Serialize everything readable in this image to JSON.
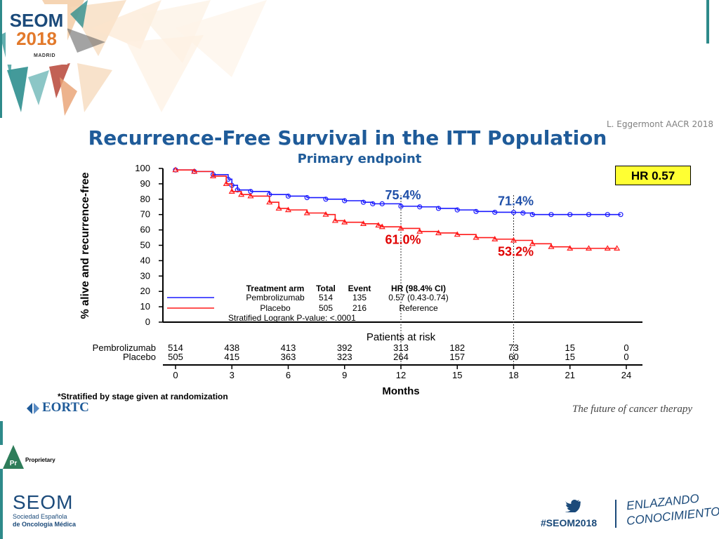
{
  "header": {
    "logo_seom": "SEOM",
    "logo_year": "2018",
    "logo_city": "MADRID",
    "citation": "L. Eggermont AACR 2018",
    "title": "Recurrence-Free Survival in the ITT Population",
    "subtitle": "Primary endpoint"
  },
  "hr_box": "HR  0.57",
  "chart_data": {
    "type": "line",
    "ylabel": "% alive and recurrence-free",
    "xlabel": "Months",
    "xlim": [
      0,
      24
    ],
    "ylim": [
      0,
      100
    ],
    "x_ticks": [
      "0",
      "3",
      "6",
      "9",
      "12",
      "15",
      "18",
      "21",
      "24"
    ],
    "y_ticks": [
      "0",
      "10",
      "20",
      "30",
      "40",
      "50",
      "60",
      "70",
      "80",
      "90",
      "100"
    ],
    "reference_lines_x": [
      12,
      18
    ],
    "series": [
      {
        "name": "Pembrolizumab",
        "color": "#1a1aff",
        "x": [
          0,
          1,
          2,
          2.8,
          3,
          3.3,
          4,
          5,
          6,
          7,
          8,
          9,
          10,
          10.5,
          11,
          12,
          13,
          14,
          15,
          16,
          17,
          18,
          18.5,
          19,
          20,
          21,
          22,
          23,
          23.7
        ],
        "y": [
          99,
          98,
          96,
          93,
          89,
          86,
          85,
          83,
          82,
          81,
          80,
          79,
          78,
          77,
          77,
          75.4,
          75,
          74,
          73,
          72,
          71.5,
          71.4,
          71,
          70,
          70,
          70,
          70,
          70,
          70
        ]
      },
      {
        "name": "Placebo",
        "color": "#ff1a1a",
        "x": [
          0,
          1,
          2,
          2.7,
          3,
          3.5,
          4,
          5,
          5.5,
          6,
          7,
          8,
          8.5,
          9,
          10,
          10.8,
          11,
          12,
          13,
          14,
          15,
          16,
          17,
          18,
          19,
          20,
          21,
          22,
          23,
          23.5
        ],
        "y": [
          99,
          98,
          95,
          90,
          85,
          83,
          82,
          78,
          74,
          73,
          71,
          70,
          66,
          65,
          64,
          63,
          62,
          61,
          59,
          58,
          57,
          55,
          54,
          53.2,
          51,
          49,
          48,
          48,
          48,
          48
        ]
      }
    ],
    "annotations": [
      {
        "text": "75.4%",
        "x": 12,
        "y": 75.4,
        "series": "Pembrolizumab"
      },
      {
        "text": "71.4%",
        "x": 18,
        "y": 71.4,
        "series": "Pembrolizumab"
      },
      {
        "text": "61.0%",
        "x": 12,
        "y": 61,
        "series": "Placebo"
      },
      {
        "text": "53.2%",
        "x": 18,
        "y": 53.2,
        "series": "Placebo"
      }
    ],
    "legend": {
      "headers": [
        "Treatment arm",
        "Total",
        "Event",
        "HR (98.4% CI)"
      ],
      "rows": [
        {
          "arm": "Pembrolizumab",
          "total": "514",
          "event": "135",
          "hr": "0.57 (0.43-0.74)"
        },
        {
          "arm": "Placebo",
          "total": "505",
          "event": "216",
          "hr": "Reference"
        }
      ],
      "note": "Stratified Logrank P-value: <.0001"
    },
    "risk_table": {
      "title": "Patients at risk",
      "rows": [
        {
          "label": "Pembrolizumab",
          "values": [
            "514",
            "438",
            "413",
            "392",
            "313",
            "182",
            "73",
            "15",
            "0"
          ]
        },
        {
          "label": "Placebo",
          "values": [
            "505",
            "415",
            "363",
            "323",
            "264",
            "157",
            "60",
            "15",
            "0"
          ]
        }
      ]
    }
  },
  "footer": {
    "footnote": "*Stratified by stage given at randomization",
    "eortc": "EORTC",
    "tagline": "The future of cancer therapy",
    "proprietary_mark": "Pr",
    "proprietary": "Proprietary",
    "seom": "SEOM",
    "seom_sub1": "Sociedad  Española",
    "seom_sub2": "de Oncología Médica",
    "hashtag": "#SEOM2018",
    "enlazando1": "ENLAZANDO",
    "enlazando2": "CONOCIMIENTO"
  }
}
